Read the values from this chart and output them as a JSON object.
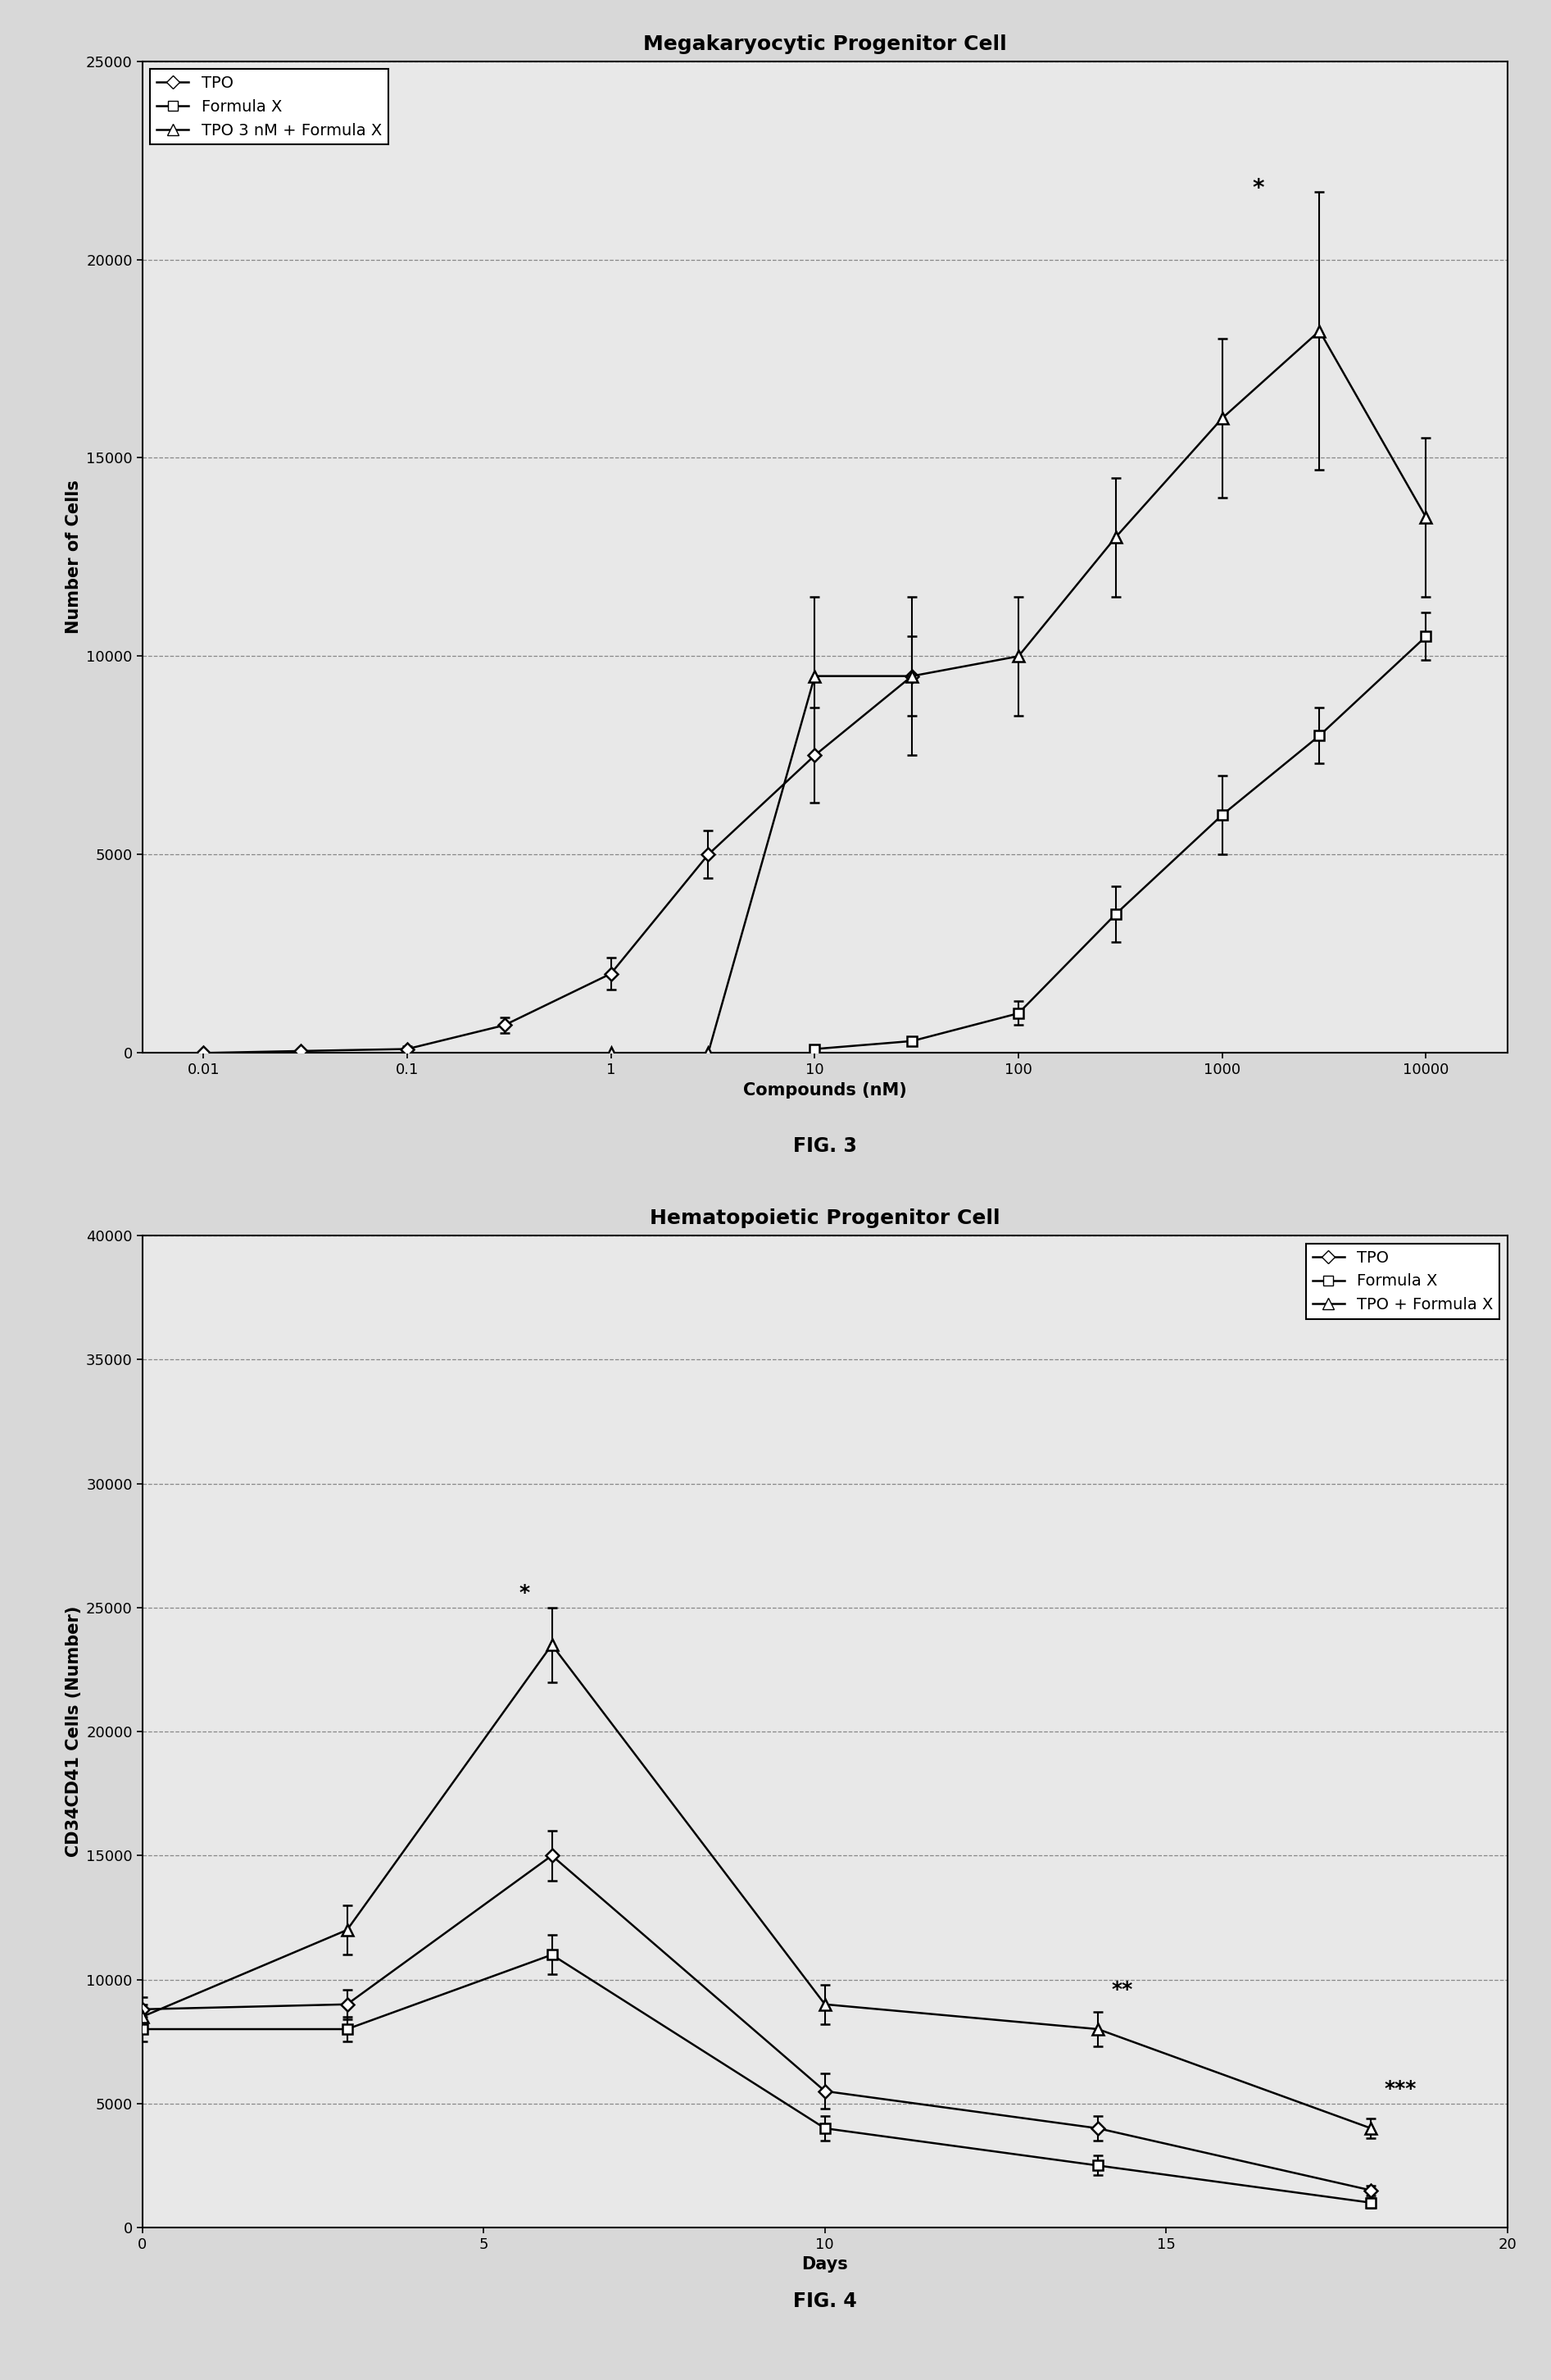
{
  "fig3": {
    "title": "Megakaryocytic Progenitor Cell",
    "xlabel": "Compounds (nM)",
    "ylabel": "Number of Cells",
    "fignum": "FIG. 3",
    "ylim": [
      0,
      25000
    ],
    "yticks": [
      0,
      5000,
      10000,
      15000,
      20000,
      25000
    ],
    "xticks_log": [
      -2,
      -1,
      0,
      1,
      2,
      3,
      4
    ],
    "xtick_labels": [
      "0.01",
      "0.1",
      "1",
      "10",
      "100",
      "1000",
      "10000"
    ],
    "tpo": {
      "x": [
        0.01,
        0.03,
        0.1,
        0.3,
        1,
        3,
        10,
        30
      ],
      "y": [
        0,
        50,
        100,
        700,
        2000,
        5000,
        7500,
        9500
      ],
      "yerr": [
        0,
        30,
        80,
        200,
        400,
        600,
        1200,
        1000
      ],
      "label": "TPO"
    },
    "formulax": {
      "x": [
        10,
        30,
        100,
        300,
        1000,
        3000,
        10000
      ],
      "y": [
        100,
        300,
        1000,
        3500,
        6000,
        8000,
        10500
      ],
      "yerr": [
        50,
        100,
        300,
        700,
        1000,
        700,
        600
      ],
      "label": "Formula X"
    },
    "combo": {
      "x": [
        1,
        3,
        10,
        30,
        100,
        300,
        1000,
        3000,
        10000
      ],
      "y": [
        0,
        0,
        9500,
        9500,
        10000,
        13000,
        16000,
        18200,
        13500
      ],
      "yerr": [
        0,
        0,
        2000,
        2000,
        1500,
        1500,
        2000,
        3500,
        2000
      ],
      "label": "TPO 3 nM + Formula X"
    },
    "star_x_log": 3.176,
    "star_y": 21500,
    "star_text": "*"
  },
  "fig4": {
    "title": "Hematopoietic Progenitor Cell",
    "xlabel": "Days",
    "ylabel": "CD34CD41 Cells (Number)",
    "fignum": "FIG. 4",
    "xlim": [
      0,
      20
    ],
    "ylim": [
      0,
      40000
    ],
    "yticks": [
      0,
      5000,
      10000,
      15000,
      20000,
      25000,
      30000,
      35000,
      40000
    ],
    "xticks": [
      0,
      5,
      10,
      15,
      20
    ],
    "tpo": {
      "x": [
        0,
        3,
        6,
        10,
        14,
        18
      ],
      "y": [
        8800,
        9000,
        15000,
        5500,
        4000,
        1500
      ],
      "yerr": [
        500,
        600,
        1000,
        700,
        500,
        200
      ],
      "label": "TPO"
    },
    "formulax": {
      "x": [
        0,
        3,
        6,
        10,
        14,
        18
      ],
      "y": [
        8000,
        8000,
        11000,
        4000,
        2500,
        1000
      ],
      "yerr": [
        500,
        500,
        800,
        500,
        400,
        200
      ],
      "label": "Formula X"
    },
    "combo": {
      "x": [
        0,
        3,
        6,
        10,
        14,
        18
      ],
      "y": [
        8500,
        12000,
        23500,
        9000,
        8000,
        4000
      ],
      "yerr": [
        500,
        1000,
        1500,
        800,
        700,
        400
      ],
      "label": "TPO + Formula X"
    },
    "star1_x": 5.6,
    "star1_y": 25200,
    "star1_text": "*",
    "star2_x": 14.2,
    "star2_y": 9200,
    "star2_text": "**",
    "star3_x": 18.2,
    "star3_y": 5200,
    "star3_text": "***"
  },
  "bg_color": "#d8d8d8",
  "plot_bg": "#e8e8e8",
  "title_fontsize": 18,
  "label_fontsize": 15,
  "tick_fontsize": 13,
  "legend_fontsize": 14,
  "fignum_fontsize": 17,
  "marker_size": 8,
  "linewidth": 1.8,
  "capsize": 4,
  "grid_color": "#888888",
  "grid_linestyle": "--",
  "grid_linewidth": 0.9
}
